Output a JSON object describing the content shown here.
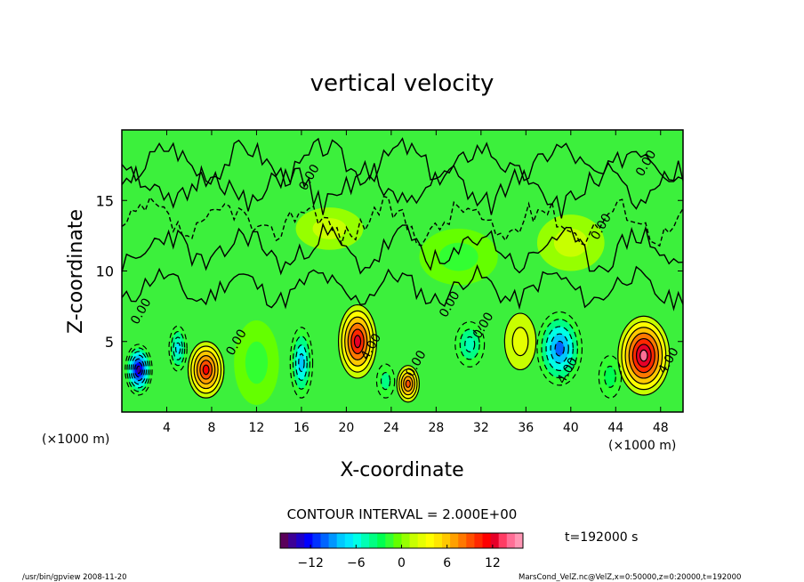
{
  "chart_data": {
    "type": "heatmap",
    "title": "vertical velocity",
    "xlabel": "X-coordinate",
    "ylabel": "Z-coordinate",
    "x_unit": "(×1000 m)",
    "y_unit": "(×1000 m)",
    "xlim": [
      0,
      50
    ],
    "ylim": [
      0,
      20
    ],
    "x_ticks": [
      4,
      8,
      12,
      16,
      20,
      24,
      28,
      32,
      36,
      40,
      44,
      48
    ],
    "y_ticks": [
      5,
      10,
      15
    ],
    "contour_interval_label": "CONTOUR INTERVAL = 2.000E+00",
    "time_label": "t=192000 s",
    "contour_labels": [
      {
        "text": "0.00",
        "x": 2,
        "y": 7
      },
      {
        "text": "0.00",
        "x": 10.5,
        "y": 4.8
      },
      {
        "text": "4.00",
        "x": 22.5,
        "y": 4.5
      },
      {
        "text": "0.00",
        "x": 26.5,
        "y": 3.3
      },
      {
        "text": "0.00",
        "x": 29.5,
        "y": 7.5
      },
      {
        "text": "0.00",
        "x": 32.5,
        "y": 6.0
      },
      {
        "text": "4.00",
        "x": 40,
        "y": 2.8
      },
      {
        "text": "4.00",
        "x": 49,
        "y": 3.5
      },
      {
        "text": "0.00",
        "x": 17,
        "y": 16.5
      },
      {
        "text": "0.00",
        "x": 43,
        "y": 13.0
      },
      {
        "text": "0.00",
        "x": 47,
        "y": 17.5
      }
    ],
    "field_cells": [
      {
        "x": 1.5,
        "z": 3.0,
        "w": -14,
        "sx": 1.2,
        "sz": 1.8
      },
      {
        "x": 5.0,
        "z": 4.5,
        "w": -7,
        "sx": 0.8,
        "sz": 1.6
      },
      {
        "x": 7.5,
        "z": 3.0,
        "w": 11,
        "sx": 1.6,
        "sz": 2.0
      },
      {
        "x": 16.0,
        "z": 3.5,
        "w": -8,
        "sx": 1.0,
        "sz": 2.5
      },
      {
        "x": 21.0,
        "z": 5.0,
        "w": 12,
        "sx": 1.7,
        "sz": 2.6
      },
      {
        "x": 25.5,
        "z": 2.0,
        "w": 9,
        "sx": 1.0,
        "sz": 1.3
      },
      {
        "x": 23.5,
        "z": 2.2,
        "w": -4,
        "sx": 0.8,
        "sz": 1.2
      },
      {
        "x": 31.0,
        "z": 4.8,
        "w": -5,
        "sx": 1.3,
        "sz": 1.6
      },
      {
        "x": 35.5,
        "z": 5.0,
        "w": 3,
        "sx": 1.4,
        "sz": 2.0
      },
      {
        "x": 39.0,
        "z": 4.5,
        "w": -10,
        "sx": 2.0,
        "sz": 2.6
      },
      {
        "x": 46.5,
        "z": 4.0,
        "w": 14,
        "sx": 2.3,
        "sz": 2.8
      },
      {
        "x": 43.5,
        "z": 2.5,
        "w": -3,
        "sx": 1.0,
        "sz": 1.5
      },
      {
        "x": 12.0,
        "z": 3.5,
        "w": -2,
        "sx": 2.0,
        "sz": 3.0
      },
      {
        "x": 18.5,
        "z": 13.0,
        "w": 2,
        "sx": 3.0,
        "sz": 1.5
      },
      {
        "x": 30.0,
        "z": 11.0,
        "w": -2,
        "sx": 3.5,
        "sz": 2.0
      },
      {
        "x": 40.0,
        "z": 12.0,
        "w": 1.5,
        "sx": 3.0,
        "sz": 2.0
      }
    ],
    "colorbar": {
      "min": -16,
      "max": 16,
      "tick_values": [
        -12,
        -6,
        0,
        6,
        12
      ],
      "tick_labels": [
        "−12",
        "−6",
        "0",
        "6",
        "12"
      ],
      "colors": [
        "#5a005a",
        "#3c0096",
        "#1e00c8",
        "#0000ff",
        "#0032ff",
        "#0064ff",
        "#0096ff",
        "#00c8ff",
        "#00e6ff",
        "#00ffe6",
        "#00ffb4",
        "#00ff82",
        "#00ff50",
        "#32ff32",
        "#64ff00",
        "#96ff00",
        "#c8ff00",
        "#e6ff00",
        "#ffff00",
        "#ffe600",
        "#ffc800",
        "#ffa000",
        "#ff7800",
        "#ff5000",
        "#ff2800",
        "#ff0000",
        "#e60028",
        "#ff3c64",
        "#ff6e96",
        "#ff96b4"
      ]
    }
  },
  "footer": {
    "left": "/usr/bin/gpview  2008-11-20",
    "right": "MarsCond_VelZ.nc@VelZ,x=0:50000,z=0:20000,t=192000"
  }
}
